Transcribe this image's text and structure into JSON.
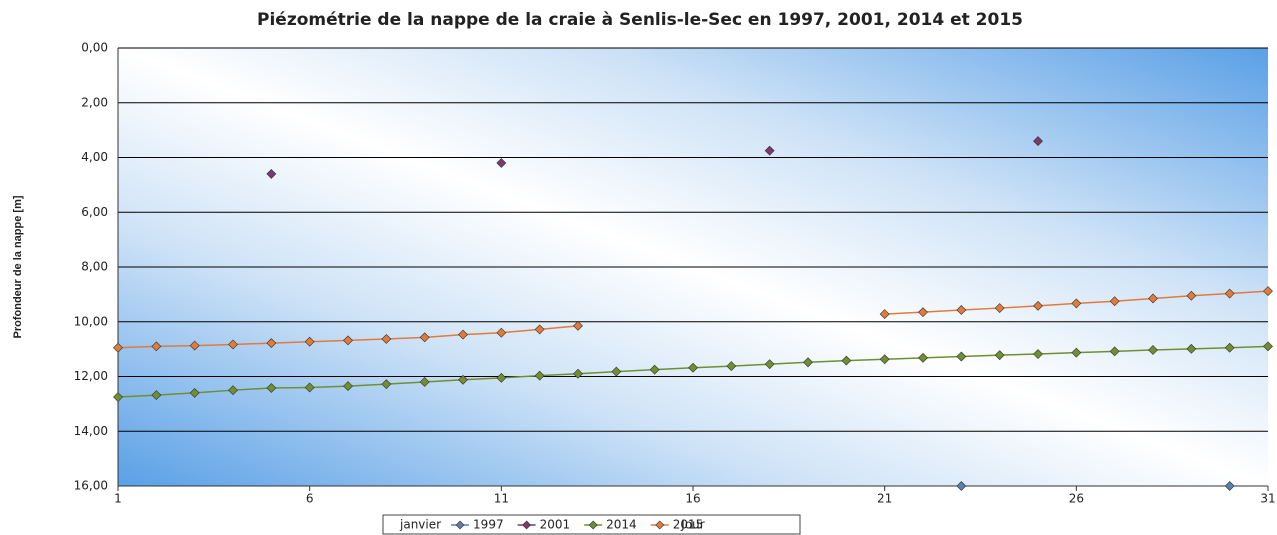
{
  "chart_data": {
    "type": "line",
    "title": "Piézométrie de la nappe de la craie à Senlis-le-Sec en 1997, 2001, 2014 et 2015",
    "y_label": "Profondeur de la nappe [m]",
    "x_label": "Jour",
    "legend_title": "janvier",
    "legend": "bottom",
    "grid": true,
    "y_reversed": true,
    "x": [
      1,
      2,
      3,
      4,
      5,
      6,
      7,
      8,
      9,
      10,
      11,
      12,
      13,
      14,
      15,
      16,
      17,
      18,
      19,
      20,
      21,
      22,
      23,
      24,
      25,
      26,
      27,
      28,
      29,
      30,
      31
    ],
    "xlim": [
      1,
      31
    ],
    "xticks": [
      1,
      6,
      11,
      16,
      21,
      26,
      31
    ],
    "ylim": [
      0,
      16
    ],
    "yticks": [
      {
        "value": 0,
        "label": "0,00"
      },
      {
        "value": 2,
        "label": "2,00"
      },
      {
        "value": 4,
        "label": "4,00"
      },
      {
        "value": 6,
        "label": "6,00"
      },
      {
        "value": 8,
        "label": "8,00"
      },
      {
        "value": 10,
        "label": "10,00"
      },
      {
        "value": 12,
        "label": "12,00"
      },
      {
        "value": 14,
        "label": "14,00"
      },
      {
        "value": 16,
        "label": "16,00"
      }
    ],
    "series": [
      {
        "name": "1997",
        "color": "#5a7fa8",
        "line": false,
        "values": [
          null,
          null,
          null,
          null,
          null,
          null,
          null,
          null,
          null,
          null,
          null,
          null,
          null,
          null,
          null,
          null,
          null,
          null,
          null,
          null,
          null,
          null,
          16,
          null,
          null,
          null,
          null,
          null,
          null,
          16,
          null
        ]
      },
      {
        "name": "2001",
        "color": "#7a3a6a",
        "line": false,
        "values": [
          null,
          null,
          null,
          null,
          4.6,
          null,
          null,
          null,
          null,
          null,
          4.2,
          null,
          null,
          null,
          null,
          null,
          null,
          3.75,
          null,
          null,
          null,
          null,
          null,
          null,
          3.4,
          null,
          null,
          null,
          null,
          null,
          null
        ]
      },
      {
        "name": "2014",
        "color": "#6f8f30",
        "line": true,
        "values": [
          12.75,
          12.68,
          12.6,
          12.5,
          12.42,
          12.4,
          12.35,
          12.28,
          12.2,
          12.12,
          12.05,
          11.97,
          11.9,
          11.82,
          11.75,
          11.68,
          11.62,
          11.55,
          11.48,
          11.42,
          11.37,
          11.32,
          11.27,
          11.22,
          11.18,
          11.13,
          11.08,
          11.03,
          10.99,
          10.95,
          10.9
        ]
      },
      {
        "name": "2015",
        "color": "#e07b3c",
        "line": true,
        "values": [
          10.95,
          10.9,
          10.87,
          10.83,
          10.78,
          10.73,
          10.68,
          10.63,
          10.57,
          10.47,
          10.4,
          10.28,
          10.15,
          null,
          null,
          null,
          null,
          null,
          null,
          null,
          9.72,
          9.65,
          9.57,
          9.5,
          9.42,
          9.33,
          9.25,
          9.15,
          9.05,
          8.97,
          8.88
        ]
      }
    ]
  }
}
